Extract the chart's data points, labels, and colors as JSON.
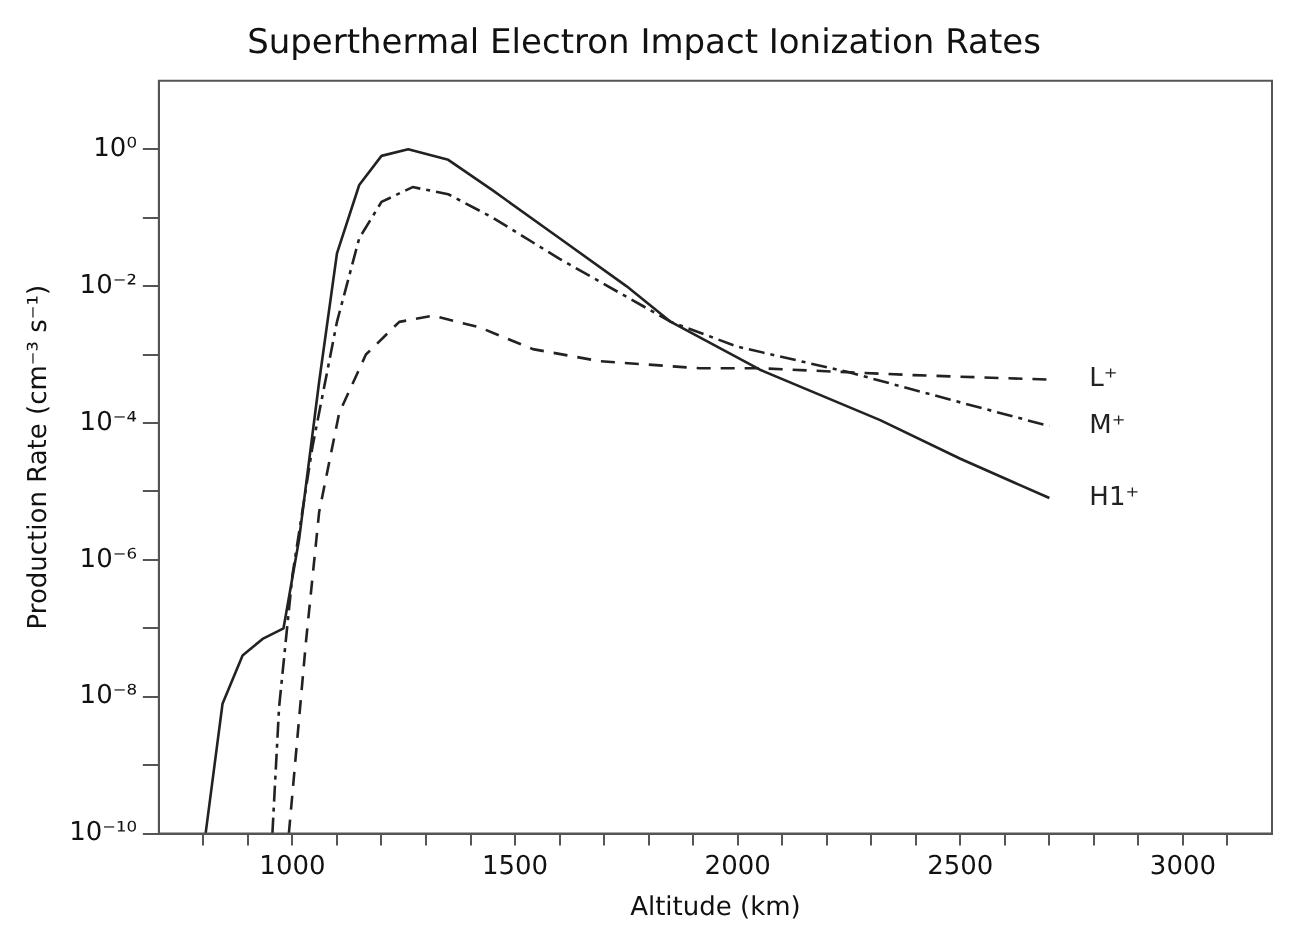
{
  "chart_data": {
    "type": "line",
    "title": "Superthermal Electron Impact Ionization Rates",
    "xlabel": "Altitude (km)",
    "ylabel": "Production Rate (cm⁻³ s⁻¹)",
    "log": "y",
    "grid": false,
    "legend": false,
    "marker": "none",
    "xlim": [
      700,
      3200
    ],
    "xticks": [
      {
        "value": 800,
        "label": null
      },
      {
        "value": 900,
        "label": null
      },
      1000,
      {
        "value": 1100,
        "label": null
      },
      {
        "value": 1200,
        "label": null
      },
      {
        "value": 1300,
        "label": null
      },
      {
        "value": 1400,
        "label": null
      },
      1500,
      {
        "value": 1600,
        "label": null
      },
      {
        "value": 1700,
        "label": null
      },
      {
        "value": 1800,
        "label": null
      },
      {
        "value": 1900,
        "label": null
      },
      2000,
      {
        "value": 2100,
        "label": null
      },
      {
        "value": 2200,
        "label": null
      },
      {
        "value": 2300,
        "label": null
      },
      {
        "value": 2400,
        "label": null
      },
      2500,
      {
        "value": 2600,
        "label": null
      },
      {
        "value": 2700,
        "label": null
      },
      {
        "value": 2800,
        "label": null
      },
      {
        "value": 2900,
        "label": null
      },
      3000,
      {
        "value": 3100,
        "label": null
      }
    ],
    "ylim": [
      1e-10,
      10
    ],
    "yticks": [
      {
        "value": 1e-10,
        "label": "10⁻¹⁰"
      },
      {
        "value": 1e-09,
        "label": null
      },
      {
        "value": 1e-08,
        "label": "10⁻⁸"
      },
      {
        "value": 1e-07,
        "label": null
      },
      {
        "value": 1e-06,
        "label": "10⁻⁶"
      },
      {
        "value": 1e-05,
        "label": null
      },
      {
        "value": 0.0001,
        "label": "10⁻⁴"
      },
      {
        "value": 0.001,
        "label": null
      },
      {
        "value": 0.01,
        "label": "10⁻²"
      },
      {
        "value": 0.1,
        "label": null
      },
      {
        "value": 1,
        "label": "10⁰"
      }
    ],
    "series": [
      {
        "name": "H1⁺",
        "color": "#222222",
        "line_style": "solid",
        "x": [
          805,
          843,
          888,
          933,
          980,
          1015,
          1060,
          1100,
          1150,
          1200,
          1260,
          1350,
          1450,
          1600,
          1750,
          1850,
          2050,
          2320,
          2500,
          2700
        ],
        "values": [
          1e-10,
          7.9e-09,
          4e-08,
          7e-08,
          1e-07,
          2e-06,
          0.0004,
          0.03,
          0.3,
          0.8,
          1,
          0.7,
          0.25,
          0.05,
          0.01,
          0.003,
          0.0006,
          0.00011,
          3e-05,
          8e-06
        ]
      },
      {
        "name": "M⁺",
        "color": "#222222",
        "line_style": "dashdot",
        "x": [
          955,
          970,
          1000,
          1045,
          1100,
          1150,
          1200,
          1270,
          1350,
          1450,
          1600,
          1750,
          1850,
          2000,
          2250,
          2500,
          2700
        ],
        "values": [
          1e-10,
          7e-09,
          6e-07,
          4.5e-05,
          0.003,
          0.05,
          0.17,
          0.28,
          0.22,
          0.1,
          0.025,
          0.007,
          0.003,
          0.0013,
          0.00055,
          0.0002,
          9e-05
        ]
      },
      {
        "name": "L⁺",
        "color": "#222222",
        "line_style": "dashed",
        "x": [
          992,
          1030,
          1060,
          1105,
          1165,
          1240,
          1315,
          1420,
          1540,
          1690,
          1915,
          2050,
          2395,
          2700
        ],
        "values": [
          1e-10,
          6e-08,
          5e-06,
          0.00014,
          0.001,
          0.003,
          0.0037,
          0.0025,
          0.0012,
          0.0008,
          0.00063,
          0.00063,
          0.0005,
          0.00043
        ]
      }
    ]
  }
}
